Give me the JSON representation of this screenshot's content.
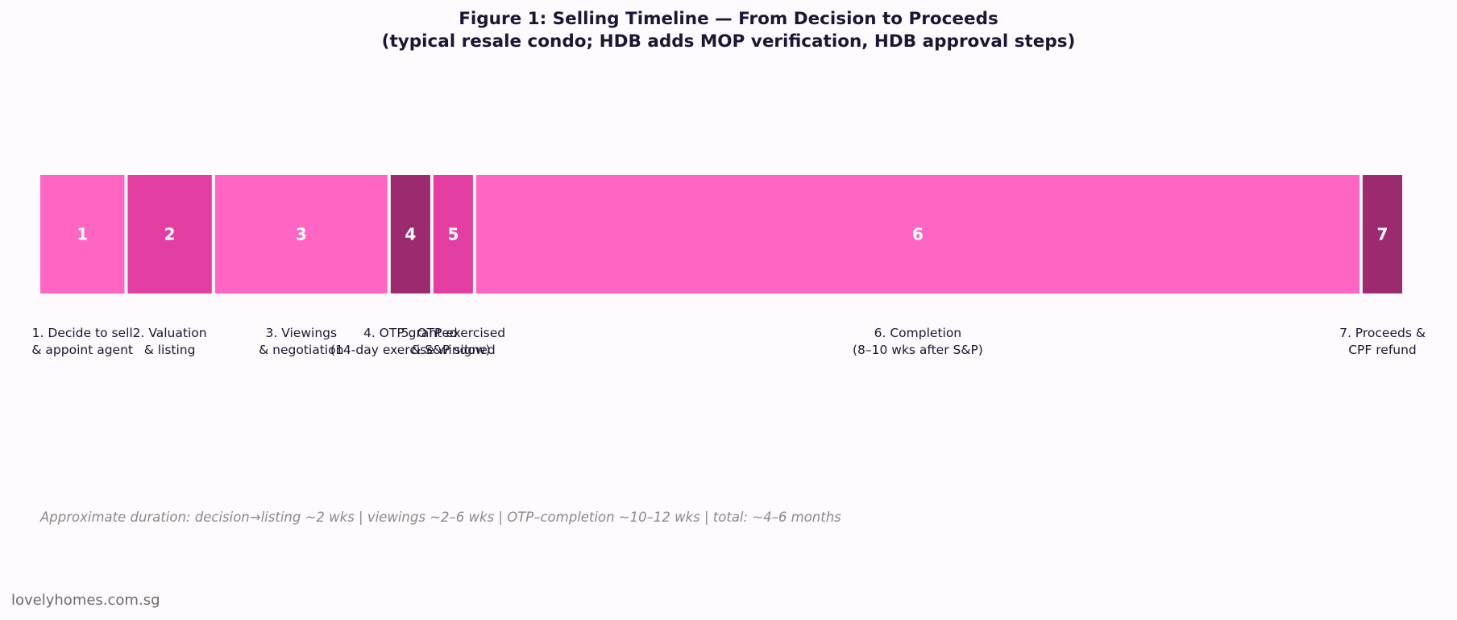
{
  "header": {
    "title_line1": "Figure 1: Selling Timeline — From Decision to Proceeds",
    "title_line2": "(typical resale condo; HDB adds MOP verification, HDB approval steps)"
  },
  "colors": {
    "pink": "#ff66c4",
    "magenta": "#e33fa3",
    "plum": "#9b2a6e"
  },
  "steps": [
    {
      "num": "1",
      "label_lines": [
        "1. Decide to sell",
        "& appoint agent"
      ],
      "color": "#ff66c4",
      "weight": 1.0
    },
    {
      "num": "2",
      "label_lines": [
        "2. Valuation",
        "& listing"
      ],
      "color": "#e33fa3",
      "weight": 1.0
    },
    {
      "num": "3",
      "label_lines": [
        "3. Viewings",
        "& negotiation"
      ],
      "color": "#ff66c4",
      "weight": 2.05
    },
    {
      "num": "4",
      "label_lines": [
        "4. OTP granted",
        "(14-day exercise window)"
      ],
      "color": "#9b2a6e",
      "weight": 0.47
    },
    {
      "num": "5",
      "label_lines": [
        "5. OTP exercised",
        "& S&P signed"
      ],
      "color": "#e33fa3",
      "weight": 0.47
    },
    {
      "num": "6",
      "label_lines": [
        "6. Completion",
        "(8–10 wks after S&P)"
      ],
      "color": "#ff66c4",
      "weight": 10.5
    },
    {
      "num": "7",
      "label_lines": [
        "7. Proceeds &",
        "CPF refund"
      ],
      "color": "#9b2a6e",
      "weight": 0.47
    }
  ],
  "note": "Approximate duration: decision→listing ~2 wks | viewings ~2–6 wks | OTP–completion ~10–12 wks | total: ~4–6 months",
  "watermark": "lovelyhomes.com.sg"
}
